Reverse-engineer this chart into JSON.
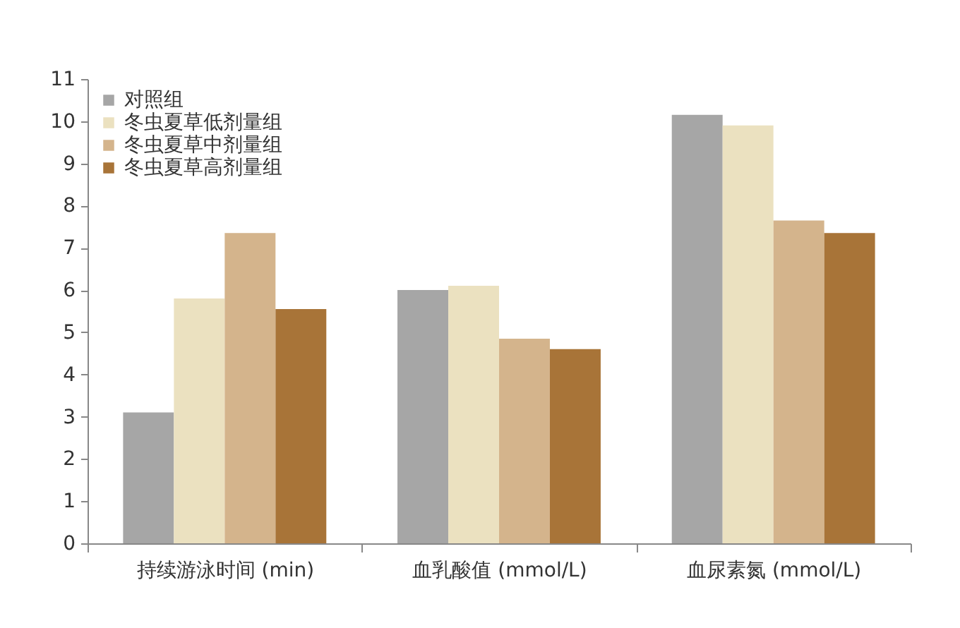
{
  "chart_data": {
    "type": "bar",
    "categories": [
      "持续游泳时间 (min)",
      "血乳酸值 (mmol/L)",
      "血尿素氮 (mmol/L)"
    ],
    "series": [
      {
        "name": "对照组",
        "color": "#a6a6a6",
        "values": [
          3.1,
          6.0,
          10.15
        ]
      },
      {
        "name": "冬虫夏草低剂量组",
        "color": "#ebe1c0",
        "values": [
          5.8,
          6.1,
          9.9
        ]
      },
      {
        "name": "冬虫夏草中剂量组",
        "color": "#d4b48c",
        "values": [
          7.35,
          4.85,
          7.65
        ]
      },
      {
        "name": "冬虫夏草高剂量组",
        "color": "#a87438",
        "values": [
          5.55,
          4.6,
          7.35
        ]
      }
    ],
    "ylim": [
      0,
      11
    ],
    "yticks": [
      0,
      1,
      2,
      3,
      4,
      5,
      6,
      7,
      8,
      9,
      10,
      11
    ],
    "grid": false,
    "legend": "top left"
  }
}
